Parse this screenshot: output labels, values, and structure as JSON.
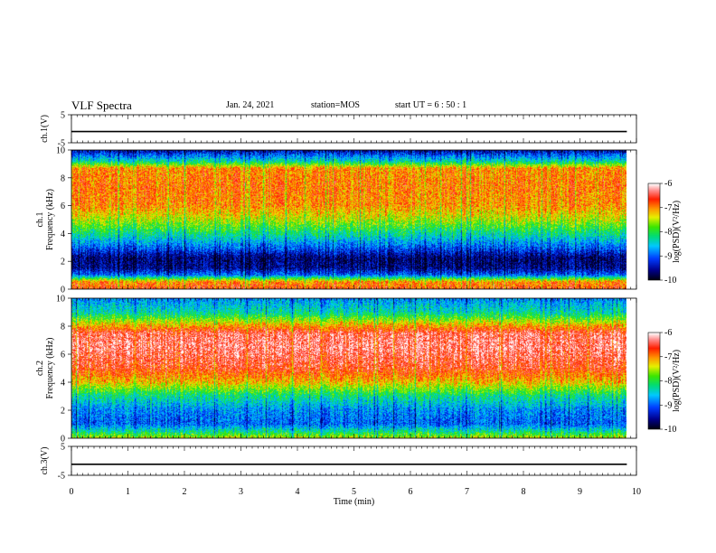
{
  "header": {
    "title": "VLF Spectra",
    "date": "Jan. 24, 2021",
    "station": "station=MOS",
    "start": "start  UT =   6 : 50 : 1"
  },
  "chart_data": [
    {
      "type": "line",
      "ylabel": "ch.1(V)",
      "ylim": [
        -5,
        5
      ],
      "yticks": [
        "5",
        "-5"
      ],
      "series": [
        {
          "values": [
            -1,
            -1
          ]
        }
      ],
      "x": [
        0,
        9.83
      ]
    },
    {
      "type": "heatmap",
      "ylabel": "ch.1  Frequency (kHz)",
      "ylim": [
        0,
        10
      ],
      "yticks": [
        "0",
        "2",
        "4",
        "6",
        "8",
        "10"
      ],
      "xlim": [
        0,
        10
      ],
      "data_end_min": 9.83,
      "colorbar": {
        "label": "log(PSD)(V²/Hz)",
        "range": [
          -10,
          -6
        ],
        "ticks": [
          "-6",
          "-7",
          "-8",
          "-9",
          "-10"
        ]
      },
      "profile": [
        {
          "f": 0.0,
          "v": -6.7
        },
        {
          "f": 0.5,
          "v": -7.0
        },
        {
          "f": 1.0,
          "v": -9.0
        },
        {
          "f": 1.5,
          "v": -9.6
        },
        {
          "f": 2.2,
          "v": -9.7
        },
        {
          "f": 3.0,
          "v": -9.0
        },
        {
          "f": 4.0,
          "v": -8.2
        },
        {
          "f": 5.0,
          "v": -7.5
        },
        {
          "f": 6.0,
          "v": -7.0
        },
        {
          "f": 7.5,
          "v": -6.9
        },
        {
          "f": 8.7,
          "v": -7.0
        },
        {
          "f": 9.2,
          "v": -8.3
        },
        {
          "f": 10.0,
          "v": -9.5
        }
      ]
    },
    {
      "type": "heatmap",
      "ylabel": "ch.2  Frequency (kHz)",
      "ylim": [
        0,
        10
      ],
      "yticks": [
        "0",
        "2",
        "4",
        "6",
        "8",
        "10"
      ],
      "xlim": [
        0,
        10
      ],
      "data_end_min": 9.83,
      "colorbar": {
        "label": "log(PSD)(V²/Hz)",
        "range": [
          -10,
          -6
        ],
        "ticks": [
          "-6",
          "-7",
          "-8",
          "-9",
          "-10"
        ]
      },
      "profile": [
        {
          "f": 0.0,
          "v": -7.5
        },
        {
          "f": 0.5,
          "v": -8.3
        },
        {
          "f": 1.0,
          "v": -9.0
        },
        {
          "f": 2.0,
          "v": -8.8
        },
        {
          "f": 3.0,
          "v": -8.2
        },
        {
          "f": 4.0,
          "v": -7.2
        },
        {
          "f": 5.0,
          "v": -6.6
        },
        {
          "f": 6.5,
          "v": -6.3
        },
        {
          "f": 7.5,
          "v": -6.4
        },
        {
          "f": 8.3,
          "v": -7.4
        },
        {
          "f": 9.0,
          "v": -8.3
        },
        {
          "f": 10.0,
          "v": -8.8
        }
      ]
    },
    {
      "type": "line",
      "ylabel": "ch.3(V)",
      "ylim": [
        -5,
        5
      ],
      "yticks": [
        "5",
        "-5"
      ],
      "series": [
        {
          "values": [
            -1.2,
            -1.2
          ]
        }
      ],
      "x": [
        0,
        9.83
      ]
    }
  ],
  "xaxis": {
    "label": "Time  (min)",
    "ticks": [
      "0",
      "1",
      "2",
      "3",
      "4",
      "5",
      "6",
      "7",
      "8",
      "9",
      "10"
    ]
  }
}
